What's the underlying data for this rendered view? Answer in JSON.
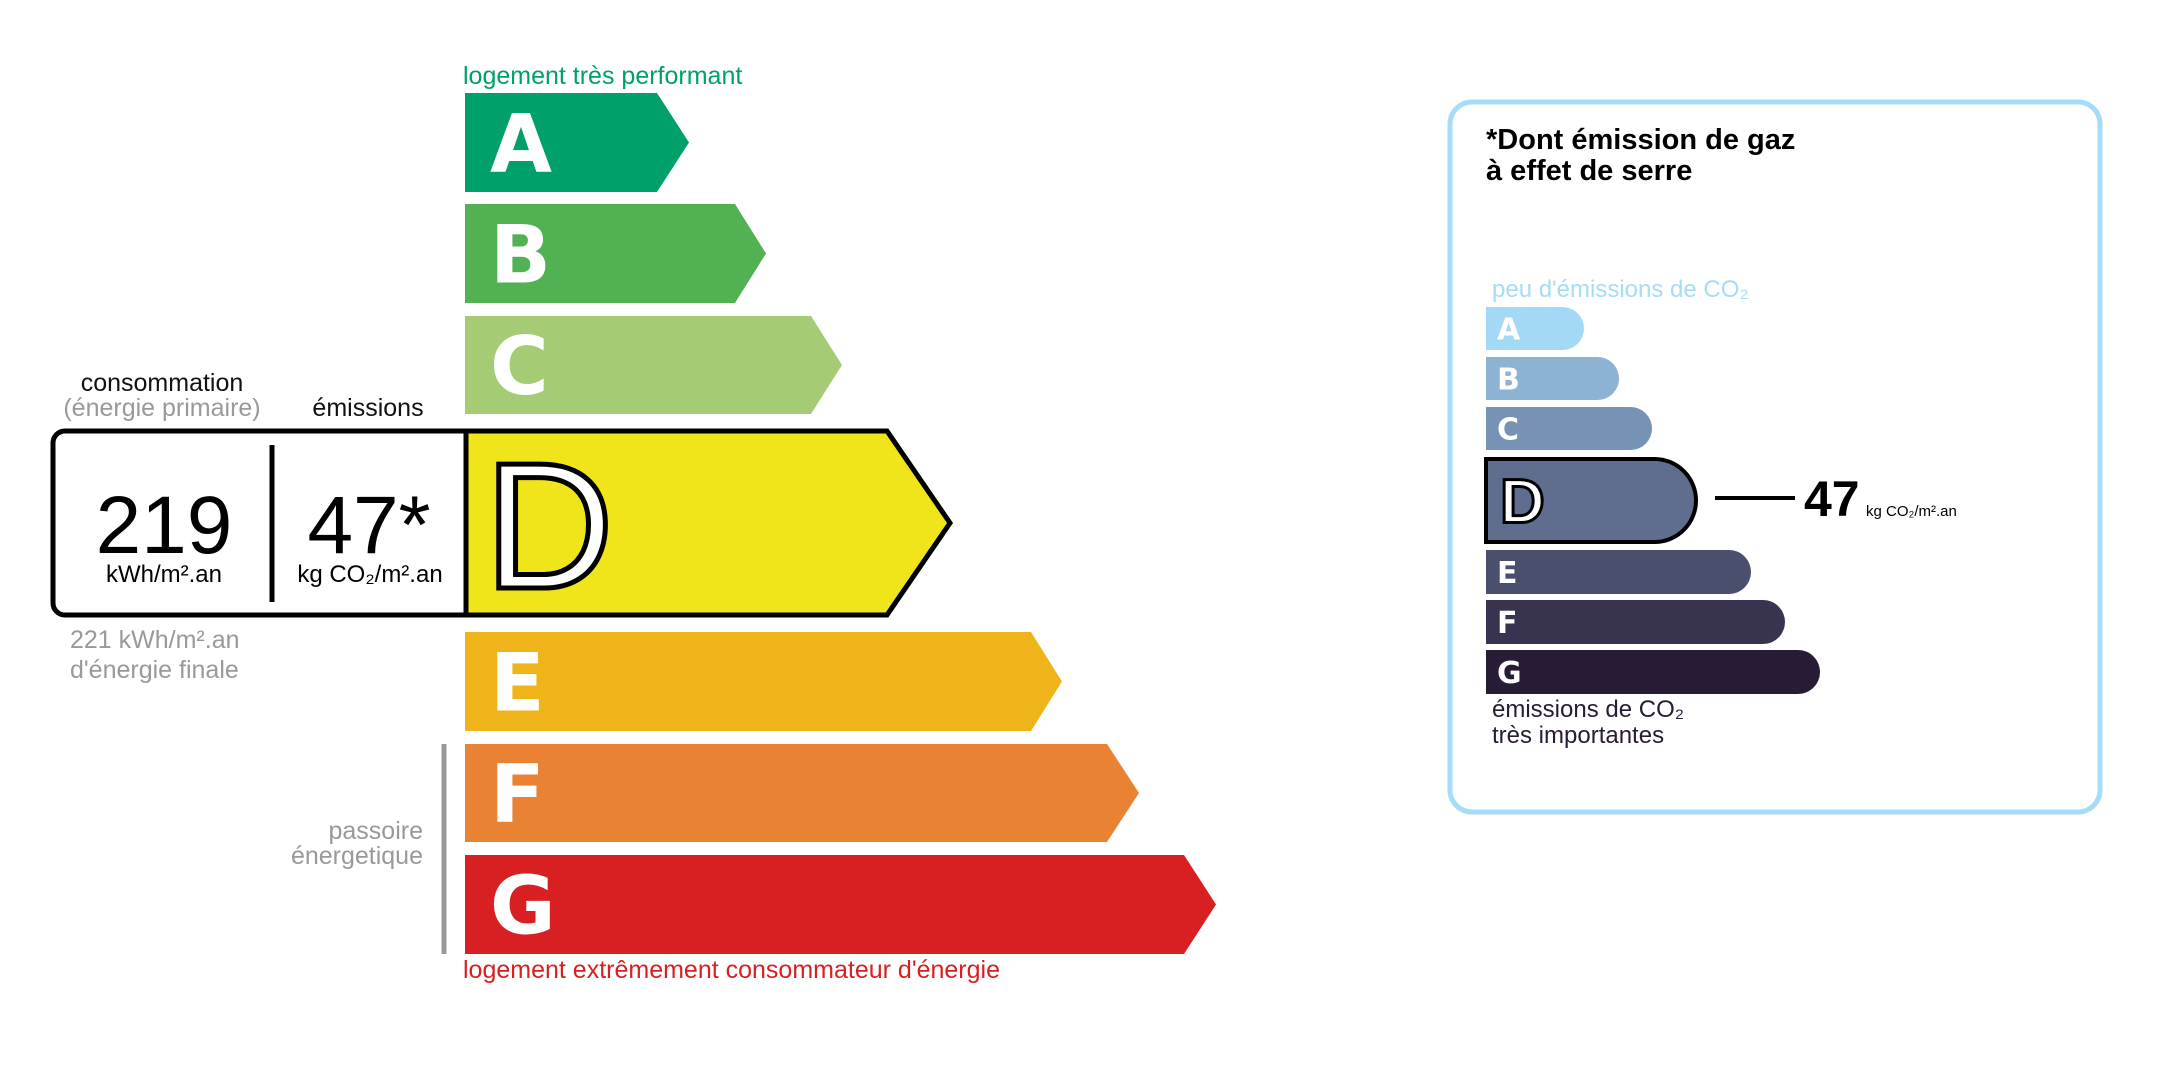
{
  "energy": {
    "top_label": "logement très performant",
    "bottom_label": "logement extrêmement consommateur d'énergie",
    "passoire_line1": "passoire",
    "passoire_line2": "énergetique",
    "consumption_header1": "consommation",
    "consumption_header2": "(énergie primaire)",
    "emissions_header": "émissions",
    "consumption_value": "219",
    "consumption_unit": "kWh/m².an",
    "emissions_value": "47*",
    "emissions_unit": "kg CO₂/m².an",
    "final_energy_value": "221 kWh/m².an",
    "final_energy_label": "d'énergie finale",
    "current_class": "D",
    "classes": [
      {
        "letter": "A",
        "color": "#00a06b"
      },
      {
        "letter": "B",
        "color": "#52b153"
      },
      {
        "letter": "C",
        "color": "#a5cc74"
      },
      {
        "letter": "D",
        "color": "#f0e51a"
      },
      {
        "letter": "E",
        "color": "#eeb419"
      },
      {
        "letter": "F",
        "color": "#ea8234"
      },
      {
        "letter": "G",
        "color": "#d81f21"
      }
    ],
    "top_label_color": "#00a06b",
    "bottom_label_color": "#d81f21"
  },
  "ghg": {
    "title_line1": "*Dont émission de gaz",
    "title_line2": "à effet de serre",
    "top_label": "peu d'émissions de CO₂",
    "bottom_line1": "émissions de CO₂",
    "bottom_line2": "très importantes",
    "value": "47",
    "unit": "kg CO₂/m².an",
    "current_class": "D",
    "border_color": "#a6dcf5",
    "classes": [
      {
        "letter": "A",
        "color": "#a4d9f5"
      },
      {
        "letter": "B",
        "color": "#8db3d4"
      },
      {
        "letter": "C",
        "color": "#7692b4"
      },
      {
        "letter": "D",
        "color": "#5f6d8f"
      },
      {
        "letter": "E",
        "color": "#4b4f6e"
      },
      {
        "letter": "F",
        "color": "#38344f"
      },
      {
        "letter": "G",
        "color": "#281b35"
      }
    ]
  }
}
